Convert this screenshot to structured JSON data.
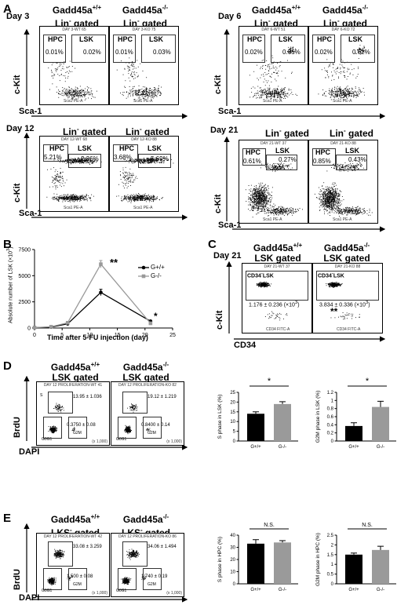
{
  "panel_letters": {
    "a": "A",
    "b": "B",
    "c": "C",
    "d": "D",
    "e": "E"
  },
  "panelA": {
    "geno_wt": "Gadd45a",
    "geno_wt_sup": "+/+",
    "geno_ko": "Gadd45a",
    "geno_ko_sup": "-/-",
    "lin_gated": "Lin",
    "lin_sup": "-",
    "gated_word": " gated",
    "day3": "Day 3",
    "day6": "Day 6",
    "day12": "Day 12",
    "day21": "Day 21",
    "ckit": "c-Kit",
    "sca1": "Sca-1",
    "hpc": "HPC",
    "lsk": "LSK",
    "fcs_xlabel": "Sca1 PE-A",
    "fcs_ylabel": "cKit APC-A",
    "plots": [
      {
        "title": "DAY 3-WT 65",
        "hpc": "0.01%",
        "lsk": "0.02%"
      },
      {
        "title": "DAY 3-KO 75",
        "hpc": "0.01%",
        "lsk": "0.03%"
      },
      {
        "title": "DAY 6-WT 51",
        "hpc": "0.02%",
        "lsk": "0.65%"
      },
      {
        "title": "DAY 6-KO 72",
        "hpc": "0.02%",
        "lsk": "0.62%"
      },
      {
        "title": "DAY 12-WT 68",
        "hpc": "5.21%",
        "lsk": "2.36%"
      },
      {
        "title": "DAY 12-KO 88",
        "hpc": "3.68%",
        "lsk": "5.69%"
      },
      {
        "title": "DAY 21-WT 37",
        "hpc": "0.61%",
        "lsk": "0.27%"
      },
      {
        "title": "DAY 21-KO 88",
        "hpc": "0.85%",
        "lsk": "0.43%"
      }
    ]
  },
  "panelB": {
    "ylabel": "Absolute number of LSK (×10",
    "ylabel_sup": "3",
    "ylabel_end": ")",
    "xlabel": "Time after 5-FU injection (day)",
    "legend_wt": "G+/+",
    "legend_ko": "G-/-",
    "sig_day12": "**",
    "sig_day21": "*"
  },
  "panelC": {
    "day": "Day 21",
    "wt_title": "Gadd45a",
    "wt_sup": "+/+",
    "ko_title": "Gadd45a",
    "ko_sup": "-/-",
    "gated": "LSK gated",
    "plot_wt_title": "DAY 21-WT 37",
    "plot_ko_title": "DAY 21-KO 88",
    "gate_label": "CD34",
    "gate_label_sup": "-",
    "gate_label_end": "LSK",
    "wt_value": "1.176 ± 0.236",
    "ko_value": "3.834 ± 0.336",
    "unit": "(×10",
    "unit_sup": "3",
    "unit_end": ")",
    "sig": "**",
    "ylabel": "c-Kit",
    "xlabel": "CD34",
    "fcs_xlabel": "CD34 FITC-A",
    "fcs_ylabel": "cKit APC-A"
  },
  "panelD": {
    "wt_title": "Gadd45a",
    "wt_sup": "+/+",
    "ko_title": "Gadd45a",
    "ko_sup": "-/-",
    "gated": "LSK gated",
    "plot_wt_title": "DAY 12 PROLIFERATION-WT 41",
    "plot_ko_title": "DAY 12 PROLIFERATION-KO 82",
    "s_wt": "13.95 ± 1.036",
    "s_ko": "19.12 ± 1.219",
    "g2m_wt": "0.3750 ± 0.08",
    "g2m_ko": "0.8400 ± 0.14",
    "label_s": "S",
    "label_g0g1": "G0G1",
    "label_g2m": "G2M",
    "fcs_xlabel": "DAPI-A",
    "fcs_ylabel": "BrdU FITC-A",
    "ylabel": "BrdU",
    "xlabel": "DAPI",
    "tick_note": "(x 1,000)"
  },
  "panelE": {
    "wt_title": "Gadd45a",
    "wt_sup": "+/+",
    "ko_title": "Gadd45a",
    "ko_sup": "-/-",
    "gated_pre": "LK",
    "gated_s": "S",
    "gated_sup": "-",
    "gated_end": " gated",
    "plot_wt_title": "DAY 12 PROLIFERATION-WT 42",
    "plot_ko_title": "DAY 12 PROLIFERATION-KO 86",
    "s_wt": "33.08 ± 3.259",
    "s_ko": "34.06 ± 1.494",
    "g2m_wt": "1.500 ± 0.08",
    "g2m_ko": "1.740 ± 0.19",
    "label_g0g1": "G0G1",
    "label_g2m": "G2M",
    "fcs_xlabel": "DAPI-A",
    "fcs_ylabel": "BrdU FITC-A",
    "ylabel": "BrdU",
    "xlabel": "DAPI",
    "tick_note": "(x 1,000)"
  },
  "chart_data": [
    {
      "type": "line",
      "title": "",
      "xlabel": "Time after 5-FU injection (day)",
      "ylabel": "Absolute number of LSK (×10³)",
      "x": [
        0,
        3,
        6,
        12,
        21
      ],
      "xlim": [
        0,
        25
      ],
      "ylim": [
        0,
        7500
      ],
      "xticks": [
        0,
        5,
        10,
        15,
        20,
        25
      ],
      "yticks": [
        0,
        2500,
        5000,
        7500
      ],
      "series": [
        {
          "name": "G+/+",
          "values": [
            40,
            90,
            400,
            3400,
            650
          ],
          "errors": [
            10,
            20,
            60,
            300,
            80
          ],
          "color": "#000000"
        },
        {
          "name": "G-/-",
          "values": [
            40,
            120,
            500,
            6100,
            450
          ],
          "errors": [
            10,
            25,
            70,
            350,
            70
          ],
          "color": "#999999"
        }
      ],
      "annotations": [
        {
          "x": 12,
          "text": "**"
        },
        {
          "x": 21,
          "text": "*"
        }
      ]
    },
    {
      "type": "bar",
      "ylabel": "S phase in LSK (%)",
      "categories": [
        "G+/+",
        "G-/-"
      ],
      "values": [
        14.0,
        19.0
      ],
      "errors": [
        1.0,
        1.2
      ],
      "ylim": [
        0,
        25
      ],
      "yticks": [
        0,
        5,
        10,
        15,
        20,
        25
      ],
      "colors": [
        "#000000",
        "#9a9a9a"
      ],
      "significance": "*"
    },
    {
      "type": "bar",
      "ylabel": "G2M phase in LSK (%)",
      "categories": [
        "G+/+",
        "G-/-"
      ],
      "values": [
        0.37,
        0.84
      ],
      "errors": [
        0.08,
        0.14
      ],
      "ylim": [
        0,
        1.2
      ],
      "yticks": [
        0,
        0.2,
        0.4,
        0.6,
        0.8,
        1.0,
        1.2
      ],
      "colors": [
        "#000000",
        "#9a9a9a"
      ],
      "significance": "*"
    },
    {
      "type": "bar",
      "ylabel": "S phase in HPC (%)",
      "categories": [
        "G+/+",
        "G-/-"
      ],
      "values": [
        33.0,
        34.0
      ],
      "errors": [
        3.3,
        1.5
      ],
      "ylim": [
        0,
        40
      ],
      "yticks": [
        0,
        10,
        20,
        30,
        40
      ],
      "colors": [
        "#000000",
        "#9a9a9a"
      ],
      "significance": "N.S."
    },
    {
      "type": "bar",
      "ylabel": "G2M phase in HPC (%)",
      "categories": [
        "G+/+",
        "G-/-"
      ],
      "values": [
        1.5,
        1.74
      ],
      "errors": [
        0.08,
        0.19
      ],
      "ylim": [
        0,
        2.5
      ],
      "yticks": [
        0,
        0.5,
        1.0,
        1.5,
        2.0,
        2.5
      ],
      "colors": [
        "#000000",
        "#9a9a9a"
      ],
      "significance": "N.S."
    }
  ]
}
